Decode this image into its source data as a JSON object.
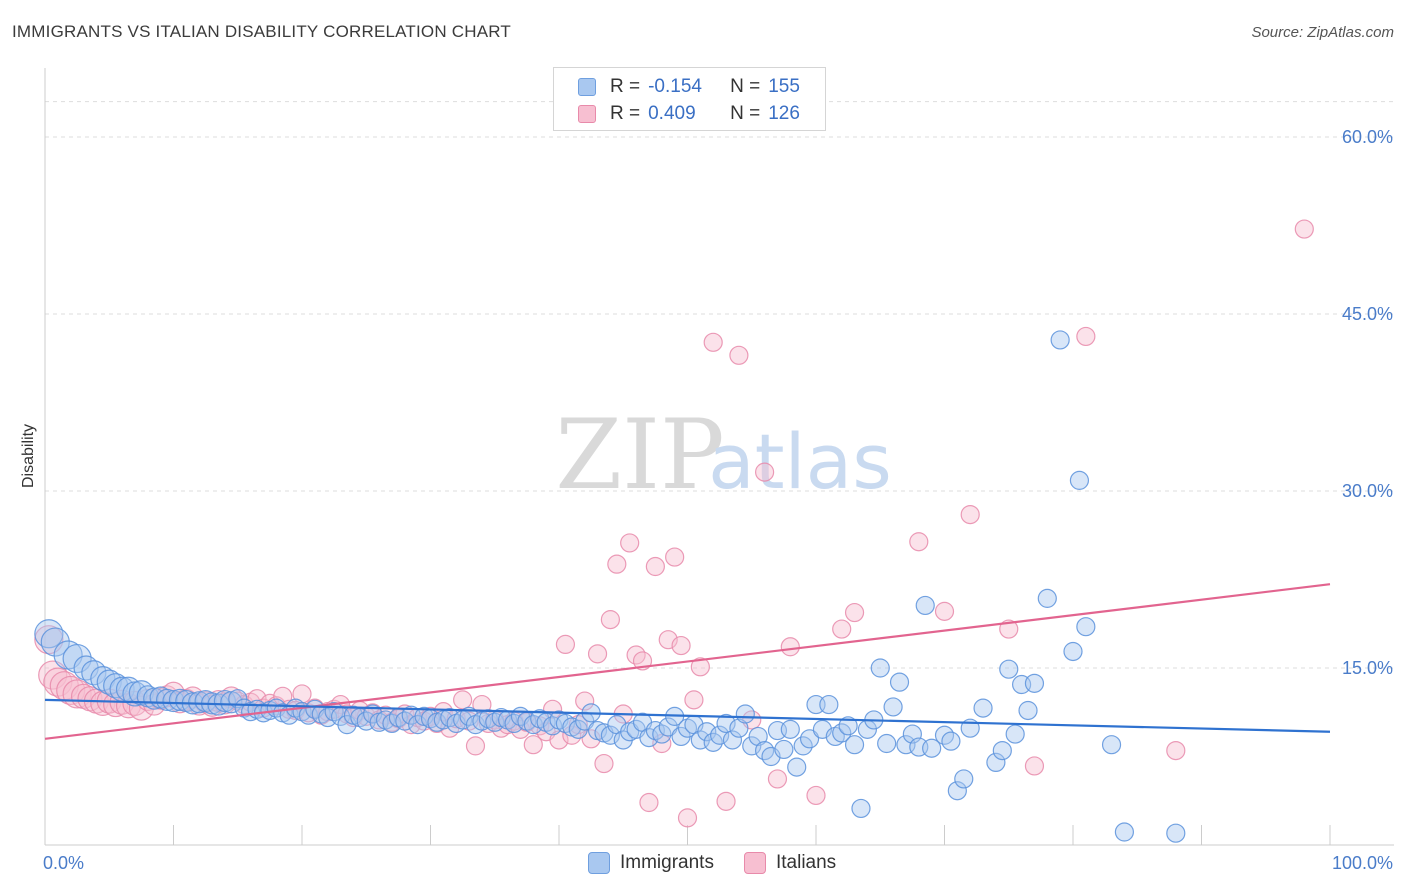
{
  "header": {
    "title": "IMMIGRANTS VS ITALIAN DISABILITY CORRELATION CHART",
    "source": "Source: ZipAtlas.com"
  },
  "legend": {
    "rows": [
      {
        "r_label": "R =",
        "r_value": "-0.154",
        "n_label": "N =",
        "n_value": "155",
        "color": "#a9c8f0",
        "border": "#6f9fdf"
      },
      {
        "r_label": "R =",
        "r_value": "0.409",
        "n_label": "N =",
        "n_value": "126",
        "color": "#f7bfd1",
        "border": "#e88aaa"
      }
    ]
  },
  "bottom_legend": [
    {
      "label": "Immigrants",
      "color": "#a9c8f0",
      "border": "#6f9fdf"
    },
    {
      "label": "Italians",
      "color": "#f7bfd1",
      "border": "#e88aaa"
    }
  ],
  "watermark": {
    "zip": "ZIP",
    "atlas": "atlas"
  },
  "chart_data": {
    "type": "scatter",
    "title": "IMMIGRANTS VS ITALIAN DISABILITY CORRELATION CHART",
    "xlabel": "",
    "ylabel": "Disability",
    "xlim": [
      0,
      100
    ],
    "ylim": [
      0,
      65
    ],
    "x_ticks": [
      "0.0%",
      "100.0%"
    ],
    "y_ticks": [
      {
        "value": 15,
        "label": "15.0%"
      },
      {
        "value": 30,
        "label": "30.0%"
      },
      {
        "value": 45,
        "label": "45.0%"
      },
      {
        "value": 60,
        "label": "60.0%"
      }
    ],
    "grid": true,
    "colors": {
      "immigrants": "#4a86d8",
      "italians": "#e8769c",
      "immigrants_line": "#2f72d0",
      "italians_line": "#e2648f"
    },
    "series": [
      {
        "name": "Immigrants",
        "trend": {
          "x": [
            0,
            100
          ],
          "y": [
            12.3,
            9.6
          ]
        },
        "points": [
          [
            0.3,
            17.9
          ],
          [
            0.8,
            17.2
          ],
          [
            1.8,
            16.1
          ],
          [
            2.5,
            15.8
          ],
          [
            3.2,
            15.0
          ],
          [
            3.8,
            14.6
          ],
          [
            4.5,
            14.1
          ],
          [
            5.0,
            13.8
          ],
          [
            5.5,
            13.5
          ],
          [
            6.0,
            13.2
          ],
          [
            6.5,
            13.2
          ],
          [
            7.0,
            12.8
          ],
          [
            7.5,
            12.9
          ],
          [
            8.0,
            12.6
          ],
          [
            8.5,
            12.4
          ],
          [
            9.0,
            12.5
          ],
          [
            9.5,
            12.3
          ],
          [
            10.0,
            12.2
          ],
          [
            10.5,
            12.3
          ],
          [
            11.0,
            12.2
          ],
          [
            11.5,
            12.0
          ],
          [
            12.0,
            12.1
          ],
          [
            12.5,
            12.2
          ],
          [
            13.0,
            12.0
          ],
          [
            13.5,
            11.9
          ],
          [
            14.0,
            12.2
          ],
          [
            14.5,
            12.1
          ],
          [
            15.0,
            12.4
          ],
          [
            15.5,
            11.6
          ],
          [
            16.0,
            11.3
          ],
          [
            16.5,
            11.5
          ],
          [
            17.0,
            11.2
          ],
          [
            17.5,
            11.4
          ],
          [
            18.0,
            11.6
          ],
          [
            18.5,
            11.2
          ],
          [
            19.0,
            11.0
          ],
          [
            19.5,
            11.6
          ],
          [
            20.0,
            11.3
          ],
          [
            20.5,
            11.0
          ],
          [
            21.0,
            11.5
          ],
          [
            21.5,
            11.1
          ],
          [
            22.0,
            10.8
          ],
          [
            22.5,
            11.3
          ],
          [
            23.0,
            10.9
          ],
          [
            23.5,
            10.2
          ],
          [
            24.0,
            11.0
          ],
          [
            24.5,
            10.8
          ],
          [
            25.0,
            10.5
          ],
          [
            25.5,
            11.1
          ],
          [
            26.0,
            10.4
          ],
          [
            26.5,
            10.6
          ],
          [
            27.0,
            10.3
          ],
          [
            27.5,
            10.8
          ],
          [
            28.0,
            10.5
          ],
          [
            28.5,
            11.0
          ],
          [
            29.0,
            10.2
          ],
          [
            29.5,
            10.9
          ],
          [
            30.0,
            10.7
          ],
          [
            30.5,
            10.4
          ],
          [
            31.0,
            10.6
          ],
          [
            31.5,
            10.8
          ],
          [
            32.0,
            10.3
          ],
          [
            32.5,
            10.6
          ],
          [
            33.0,
            10.9
          ],
          [
            33.5,
            10.2
          ],
          [
            34.0,
            10.5
          ],
          [
            34.5,
            10.7
          ],
          [
            35.0,
            10.4
          ],
          [
            35.5,
            10.8
          ],
          [
            36.0,
            10.6
          ],
          [
            36.5,
            10.3
          ],
          [
            37.0,
            10.9
          ],
          [
            37.5,
            10.5
          ],
          [
            38.0,
            10.2
          ],
          [
            38.5,
            10.7
          ],
          [
            39.0,
            10.4
          ],
          [
            39.5,
            10.1
          ],
          [
            40.0,
            10.6
          ],
          [
            40.5,
            10.3
          ],
          [
            41.0,
            10.0
          ],
          [
            41.5,
            9.8
          ],
          [
            42.0,
            10.5
          ],
          [
            42.5,
            11.2
          ],
          [
            43.0,
            9.7
          ],
          [
            43.5,
            9.5
          ],
          [
            44.0,
            9.3
          ],
          [
            44.5,
            10.2
          ],
          [
            45.0,
            8.9
          ],
          [
            45.5,
            9.6
          ],
          [
            46.0,
            9.8
          ],
          [
            46.5,
            10.4
          ],
          [
            47.0,
            9.1
          ],
          [
            47.5,
            9.7
          ],
          [
            48.0,
            9.4
          ],
          [
            48.5,
            10.0
          ],
          [
            49.0,
            10.9
          ],
          [
            49.5,
            9.2
          ],
          [
            50.0,
            9.9
          ],
          [
            50.5,
            10.2
          ],
          [
            51.0,
            8.9
          ],
          [
            51.5,
            9.6
          ],
          [
            52.0,
            8.7
          ],
          [
            52.5,
            9.3
          ],
          [
            53.0,
            10.3
          ],
          [
            53.5,
            8.9
          ],
          [
            54.0,
            9.9
          ],
          [
            54.5,
            11.1
          ],
          [
            55.0,
            8.4
          ],
          [
            55.5,
            9.2
          ],
          [
            56.0,
            8.0
          ],
          [
            56.5,
            7.5
          ],
          [
            57.0,
            9.7
          ],
          [
            57.5,
            8.1
          ],
          [
            58.0,
            9.8
          ],
          [
            58.5,
            6.6
          ],
          [
            59.0,
            8.4
          ],
          [
            59.5,
            9.0
          ],
          [
            60.0,
            11.9
          ],
          [
            60.5,
            9.8
          ],
          [
            61.0,
            11.9
          ],
          [
            61.5,
            9.2
          ],
          [
            62.0,
            9.5
          ],
          [
            62.5,
            10.1
          ],
          [
            63.0,
            8.5
          ],
          [
            63.5,
            3.1
          ],
          [
            64.0,
            9.8
          ],
          [
            64.5,
            10.6
          ],
          [
            65.0,
            15.0
          ],
          [
            65.5,
            8.6
          ],
          [
            66.0,
            11.7
          ],
          [
            66.5,
            13.8
          ],
          [
            67.0,
            8.5
          ],
          [
            67.5,
            9.4
          ],
          [
            68.0,
            8.3
          ],
          [
            68.5,
            20.3
          ],
          [
            69.0,
            8.2
          ],
          [
            70.0,
            9.3
          ],
          [
            70.5,
            8.8
          ],
          [
            71.0,
            4.6
          ],
          [
            71.5,
            5.6
          ],
          [
            72.0,
            9.9
          ],
          [
            73.0,
            11.6
          ],
          [
            74.0,
            7.0
          ],
          [
            74.5,
            8.0
          ],
          [
            75.0,
            14.9
          ],
          [
            75.5,
            9.4
          ],
          [
            76.0,
            13.6
          ],
          [
            76.5,
            11.4
          ],
          [
            77.0,
            13.7
          ],
          [
            78.0,
            20.9
          ],
          [
            79.0,
            42.8
          ],
          [
            80.0,
            16.4
          ],
          [
            80.5,
            30.9
          ],
          [
            81.0,
            18.5
          ],
          [
            83.0,
            8.5
          ],
          [
            84.0,
            1.1
          ],
          [
            88.0,
            1.0
          ]
        ]
      },
      {
        "name": "Italians",
        "trend": {
          "x": [
            0,
            100
          ],
          "y": [
            9.0,
            22.1
          ]
        },
        "points": [
          [
            0.3,
            17.4
          ],
          [
            0.6,
            14.4
          ],
          [
            1.0,
            13.8
          ],
          [
            1.5,
            13.5
          ],
          [
            2.0,
            13.1
          ],
          [
            2.5,
            12.8
          ],
          [
            3.0,
            12.6
          ],
          [
            3.5,
            12.4
          ],
          [
            4.0,
            12.2
          ],
          [
            4.5,
            12.0
          ],
          [
            5.0,
            12.2
          ],
          [
            5.5,
            11.9
          ],
          [
            6.0,
            12.1
          ],
          [
            6.5,
            11.8
          ],
          [
            7.0,
            12.0
          ],
          [
            7.5,
            11.6
          ],
          [
            8.0,
            12.3
          ],
          [
            8.5,
            11.9
          ],
          [
            9.0,
            12.4
          ],
          [
            9.5,
            12.6
          ],
          [
            10.0,
            12.9
          ],
          [
            10.5,
            12.1
          ],
          [
            11.0,
            12.3
          ],
          [
            11.5,
            12.5
          ],
          [
            12.0,
            11.9
          ],
          [
            12.5,
            12.1
          ],
          [
            13.0,
            11.8
          ],
          [
            13.5,
            12.2
          ],
          [
            14.0,
            12.0
          ],
          [
            14.5,
            12.5
          ],
          [
            15.0,
            12.2
          ],
          [
            15.5,
            11.9
          ],
          [
            16.0,
            12.1
          ],
          [
            16.5,
            12.4
          ],
          [
            17.0,
            11.6
          ],
          [
            17.5,
            12.0
          ],
          [
            18.0,
            11.8
          ],
          [
            18.5,
            12.6
          ],
          [
            19.0,
            11.5
          ],
          [
            19.5,
            11.4
          ],
          [
            20.0,
            12.8
          ],
          [
            20.5,
            11.2
          ],
          [
            21.0,
            11.6
          ],
          [
            21.5,
            11.0
          ],
          [
            22.0,
            11.3
          ],
          [
            22.5,
            11.5
          ],
          [
            23.0,
            11.9
          ],
          [
            23.5,
            11.1
          ],
          [
            24.0,
            10.8
          ],
          [
            24.5,
            11.4
          ],
          [
            25.0,
            10.9
          ],
          [
            25.5,
            11.2
          ],
          [
            26.0,
            10.6
          ],
          [
            26.5,
            11.0
          ],
          [
            27.0,
            10.4
          ],
          [
            27.5,
            10.7
          ],
          [
            28.0,
            11.1
          ],
          [
            28.5,
            10.2
          ],
          [
            29.0,
            10.8
          ],
          [
            29.5,
            10.5
          ],
          [
            30.0,
            10.9
          ],
          [
            30.5,
            10.3
          ],
          [
            31.0,
            11.3
          ],
          [
            31.5,
            9.9
          ],
          [
            32.0,
            10.7
          ],
          [
            32.5,
            12.3
          ],
          [
            33.0,
            10.5
          ],
          [
            33.5,
            8.4
          ],
          [
            34.0,
            11.9
          ],
          [
            34.5,
            10.3
          ],
          [
            35.0,
            10.6
          ],
          [
            35.5,
            9.9
          ],
          [
            36.0,
            10.2
          ],
          [
            36.5,
            10.5
          ],
          [
            37.0,
            9.8
          ],
          [
            37.5,
            10.4
          ],
          [
            38.0,
            8.5
          ],
          [
            38.5,
            10.1
          ],
          [
            39.0,
            9.6
          ],
          [
            39.5,
            11.5
          ],
          [
            40.0,
            8.9
          ],
          [
            40.5,
            17.0
          ],
          [
            41.0,
            9.3
          ],
          [
            41.5,
            10.2
          ],
          [
            42.0,
            12.2
          ],
          [
            42.5,
            9.0
          ],
          [
            43.0,
            16.2
          ],
          [
            43.5,
            6.9
          ],
          [
            44.0,
            19.1
          ],
          [
            44.5,
            23.8
          ],
          [
            45.0,
            11.1
          ],
          [
            45.5,
            25.6
          ],
          [
            46.0,
            16.1
          ],
          [
            46.5,
            15.6
          ],
          [
            47.0,
            3.6
          ],
          [
            47.5,
            23.6
          ],
          [
            48.0,
            8.6
          ],
          [
            48.5,
            17.4
          ],
          [
            49.0,
            24.4
          ],
          [
            49.5,
            16.9
          ],
          [
            50.0,
            2.3
          ],
          [
            50.5,
            12.3
          ],
          [
            51.0,
            15.1
          ],
          [
            52.0,
            42.6
          ],
          [
            53.0,
            3.7
          ],
          [
            54.0,
            41.5
          ],
          [
            55.0,
            10.6
          ],
          [
            56.0,
            31.6
          ],
          [
            57.0,
            5.6
          ],
          [
            58.0,
            16.8
          ],
          [
            60.0,
            4.2
          ],
          [
            62.0,
            18.3
          ],
          [
            63.0,
            19.7
          ],
          [
            68.0,
            25.7
          ],
          [
            70.0,
            19.8
          ],
          [
            72.0,
            28.0
          ],
          [
            75.0,
            18.3
          ],
          [
            77.0,
            6.7
          ],
          [
            81.0,
            43.1
          ],
          [
            88.0,
            8.0
          ],
          [
            98.0,
            52.2
          ]
        ]
      }
    ]
  }
}
